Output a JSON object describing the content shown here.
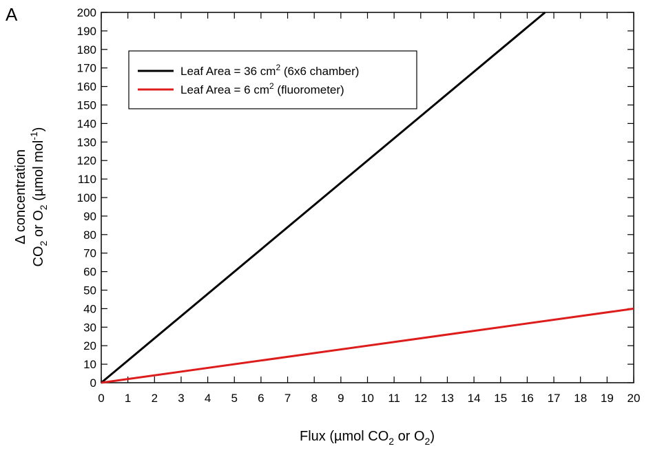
{
  "panel_label": "A",
  "chart_data": {
    "type": "line",
    "xlabel": {
      "pre": "Flux (µmol CO",
      "sub": "2",
      "post": " or O",
      "sub2": "2",
      "end": ")"
    },
    "ylabel_line1": "Δ concentration",
    "ylabel_line2": {
      "a": "CO",
      "sub_a": "2",
      "b": " or O",
      "sub_b": "2",
      "c": " (µmol mol",
      "sup": "-1",
      "d": ")"
    },
    "xlim": [
      0,
      20
    ],
    "ylim": [
      0,
      200
    ],
    "xticks": [
      0,
      1,
      2,
      3,
      4,
      5,
      6,
      7,
      8,
      9,
      10,
      11,
      12,
      13,
      14,
      15,
      16,
      17,
      18,
      19,
      20
    ],
    "yticks": [
      0,
      10,
      20,
      30,
      40,
      50,
      60,
      70,
      80,
      90,
      100,
      110,
      120,
      130,
      140,
      150,
      160,
      170,
      180,
      190,
      200
    ],
    "grid": false,
    "legend_position": "top-left",
    "series": [
      {
        "name": "Leaf Area = 36 cm2 (6x6 chamber)",
        "legend": {
          "pre": "Leaf Area = 36 cm",
          "sup": "2",
          "post": " (6x6 chamber)"
        },
        "color": "#000000",
        "x": [
          0,
          1,
          16.67
        ],
        "y": [
          0,
          12,
          200
        ]
      },
      {
        "name": "Leaf Area = 6 cm2 (fluorometer)",
        "legend": {
          "pre": "Leaf Area = 6 cm",
          "sup": "2",
          "post": " (fluorometer)"
        },
        "color": "#dd1c1c",
        "x": [
          0,
          20
        ],
        "y": [
          0,
          40
        ]
      }
    ]
  }
}
